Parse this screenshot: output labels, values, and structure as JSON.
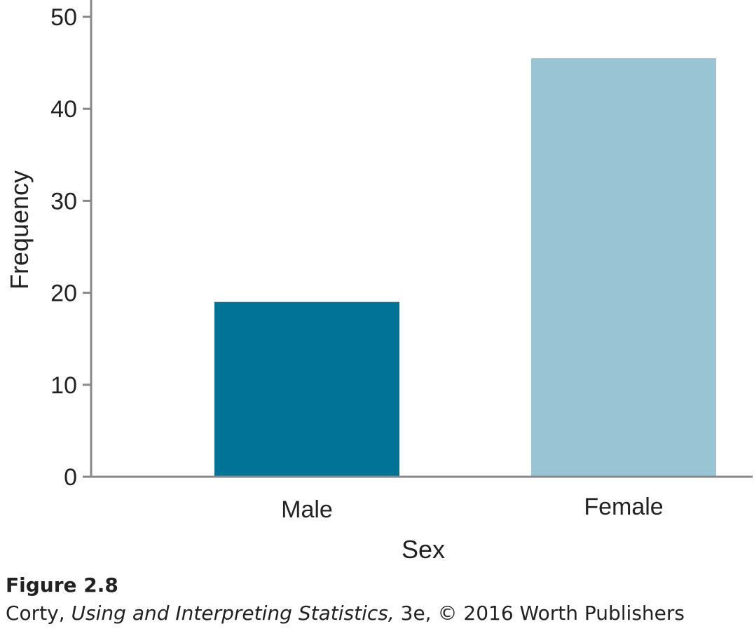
{
  "chart_data": {
    "type": "bar",
    "categories": [
      "Male",
      "Female"
    ],
    "values": [
      19,
      45.5
    ],
    "xlabel": "Sex",
    "ylabel": "Frequency",
    "ylim": [
      0,
      50
    ],
    "yticks": [
      0,
      10,
      20,
      30,
      40,
      50
    ],
    "grid": false,
    "bar_colors": [
      "#007396",
      "#98c4d4"
    ]
  },
  "caption": {
    "figure_label": "Figure 2.8",
    "source_author": "Corty,",
    "source_title": "Using and Interpreting Statistics,",
    "source_rest": "3e, © 2016 Worth Publishers"
  },
  "colors": {
    "axis": "#888888",
    "text": "#222222"
  }
}
